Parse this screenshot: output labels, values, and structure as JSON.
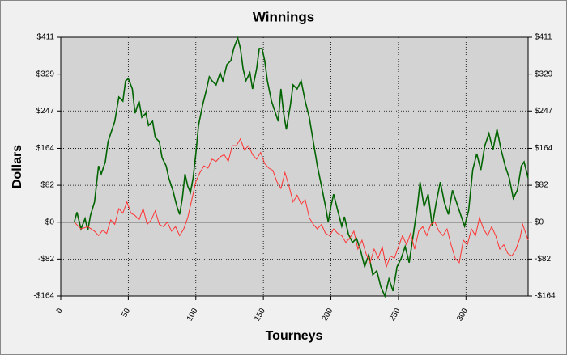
{
  "chart_data": {
    "type": "line",
    "title": "Winnings",
    "x_label": "Tourneys",
    "y_label": "Dollars",
    "xlim": [
      0,
      346
    ],
    "ylim": [
      -164,
      411
    ],
    "xticks": [
      0,
      50,
      100,
      150,
      200,
      250,
      300
    ],
    "yticks": [
      {
        "value": -164,
        "label": "-$164"
      },
      {
        "value": -82,
        "label": "-$82"
      },
      {
        "value": 0,
        "label": "$0"
      },
      {
        "value": 82,
        "label": "$82"
      },
      {
        "value": 164,
        "label": "$164"
      },
      {
        "value": 247,
        "label": "$247"
      },
      {
        "value": 329,
        "label": "$329"
      },
      {
        "value": 411,
        "label": "$411"
      }
    ],
    "grid": true,
    "series": [
      {
        "color": "#006400",
        "x": [
          10,
          12,
          15,
          18,
          20,
          22,
          25,
          28,
          30,
          33,
          35,
          40,
          43,
          46,
          48,
          50,
          53,
          55,
          58,
          60,
          63,
          65,
          68,
          70,
          73,
          75,
          78,
          80,
          83,
          86,
          88,
          90,
          92,
          94,
          96,
          98,
          100,
          102,
          105,
          108,
          110,
          112,
          115,
          118,
          120,
          123,
          126,
          128,
          131,
          133,
          135,
          137,
          140,
          142,
          145,
          147,
          149,
          151,
          153,
          156,
          158,
          161,
          163,
          165,
          167,
          170,
          172,
          175,
          178,
          181,
          184,
          187,
          190,
          193,
          196,
          198,
          200,
          202,
          205,
          208,
          210,
          213,
          216,
          219,
          222,
          225,
          228,
          231,
          234,
          237,
          240,
          243,
          246,
          249,
          252,
          255,
          258,
          261,
          264,
          266,
          269,
          272,
          275,
          278,
          281,
          284,
          287,
          290,
          293,
          296,
          299,
          302,
          305,
          308,
          311,
          314,
          317,
          320,
          323,
          326,
          329,
          332,
          335,
          338,
          341,
          343,
          346
        ],
        "values": [
          0,
          22,
          -15,
          8,
          -18,
          15,
          45,
          125,
          107,
          134,
          179,
          224,
          278,
          269,
          314,
          319,
          296,
          242,
          269,
          233,
          242,
          215,
          224,
          188,
          179,
          143,
          125,
          98,
          71,
          35,
          17,
          53,
          107,
          80,
          66,
          98,
          152,
          215,
          260,
          296,
          323,
          314,
          305,
          332,
          314,
          350,
          359,
          386,
          409,
          386,
          341,
          314,
          332,
          296,
          341,
          386,
          386,
          359,
          314,
          269,
          251,
          224,
          296,
          242,
          206,
          260,
          305,
          296,
          314,
          269,
          233,
          179,
          125,
          80,
          35,
          0,
          35,
          62,
          26,
          -9,
          12,
          -27,
          -45,
          -36,
          -63,
          -99,
          -72,
          -117,
          -108,
          -144,
          -164,
          -126,
          -153,
          -99,
          -81,
          -54,
          -90,
          -27,
          35,
          89,
          35,
          62,
          -9,
          44,
          89,
          44,
          17,
          71,
          44,
          17,
          -9,
          26,
          116,
          152,
          116,
          170,
          197,
          161,
          206,
          161,
          125,
          98,
          53,
          71,
          125,
          134,
          98
        ]
      },
      {
        "color": "#ff3333",
        "x": [
          10,
          15,
          20,
          25,
          28,
          31,
          34,
          37,
          40,
          43,
          46,
          49,
          52,
          55,
          58,
          61,
          64,
          67,
          70,
          73,
          76,
          79,
          82,
          85,
          88,
          91,
          94,
          97,
          100,
          103,
          106,
          109,
          112,
          115,
          118,
          121,
          124,
          127,
          130,
          133,
          136,
          139,
          142,
          145,
          148,
          151,
          154,
          157,
          160,
          163,
          166,
          169,
          172,
          175,
          178,
          181,
          184,
          187,
          190,
          193,
          196,
          199,
          202,
          205,
          208,
          211,
          214,
          217,
          220,
          223,
          226,
          229,
          232,
          235,
          238,
          241,
          244,
          247,
          250,
          253,
          256,
          259,
          262,
          265,
          268,
          271,
          274,
          277,
          280,
          283,
          286,
          289,
          292,
          295,
          298,
          301,
          304,
          307,
          310,
          313,
          316,
          319,
          322,
          325,
          328,
          331,
          334,
          337,
          340,
          342,
          346
        ],
        "values": [
          0,
          -15,
          -10,
          -20,
          -30,
          -18,
          -25,
          5,
          -5,
          30,
          20,
          45,
          20,
          15,
          5,
          30,
          -5,
          5,
          25,
          -5,
          -10,
          0,
          -20,
          -10,
          -30,
          -15,
          10,
          50,
          90,
          110,
          125,
          120,
          140,
          135,
          145,
          150,
          135,
          170,
          170,
          185,
          160,
          170,
          150,
          140,
          155,
          130,
          120,
          115,
          90,
          75,
          110,
          80,
          45,
          60,
          40,
          50,
          10,
          -5,
          -15,
          -5,
          -25,
          -30,
          -15,
          -25,
          -30,
          -45,
          -35,
          -20,
          -60,
          -40,
          -70,
          -90,
          -60,
          -80,
          -55,
          -100,
          -75,
          -80,
          -55,
          -30,
          -50,
          -25,
          -60,
          -20,
          -10,
          -30,
          -5,
          0,
          -20,
          -30,
          -15,
          -50,
          -80,
          -90,
          -40,
          -50,
          -15,
          -30,
          10,
          -15,
          -30,
          -10,
          -30,
          -60,
          -50,
          -70,
          -75,
          -60,
          -35,
          -5,
          -40
        ]
      }
    ]
  }
}
